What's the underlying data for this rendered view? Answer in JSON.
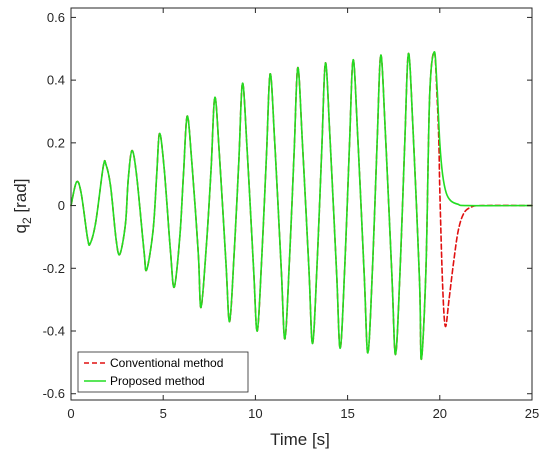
{
  "chart_data": {
    "type": "line",
    "title": "",
    "xlabel": "Time [s]",
    "ylabel_main": "q",
    "ylabel_sub": "2",
    "ylabel_unit": " [rad]",
    "xlim": [
      0,
      25
    ],
    "ylim": [
      -0.62,
      0.63
    ],
    "x_ticks": [
      0,
      5,
      10,
      15,
      20,
      25
    ],
    "x_tick_labels": [
      "0",
      "5",
      "10",
      "15",
      "20",
      "25"
    ],
    "y_ticks": [
      -0.6,
      -0.4,
      -0.2,
      0,
      0.2,
      0.4,
      0.6
    ],
    "y_tick_labels": [
      "-0.6",
      "-0.4",
      "-0.2",
      "0",
      "0.2",
      "0.4",
      "0.6"
    ],
    "grid": false,
    "legend_position": "bottom-left",
    "series": [
      {
        "name": "Conventional method",
        "color": "#e01010",
        "style": "dashed",
        "points": [
          [
            0,
            0
          ],
          [
            0.3,
            0.075
          ],
          [
            0.55,
            0.04
          ],
          [
            0.9,
            -0.105
          ],
          [
            1.05,
            -0.12
          ],
          [
            1.35,
            -0.05
          ],
          [
            1.75,
            0.125
          ],
          [
            1.9,
            0.13
          ],
          [
            2.15,
            0.06
          ],
          [
            2.45,
            -0.11
          ],
          [
            2.65,
            -0.155
          ],
          [
            2.95,
            -0.06
          ],
          [
            3.1,
            0.08
          ],
          [
            3.3,
            0.175
          ],
          [
            3.55,
            0.1
          ],
          [
            3.95,
            -0.14
          ],
          [
            4.1,
            -0.205
          ],
          [
            4.45,
            -0.08
          ],
          [
            4.65,
            0.1
          ],
          [
            4.8,
            0.23
          ],
          [
            5.05,
            0.12
          ],
          [
            5.4,
            -0.15
          ],
          [
            5.6,
            -0.26
          ],
          [
            5.9,
            -0.1
          ],
          [
            6.1,
            0.1
          ],
          [
            6.3,
            0.285
          ],
          [
            6.55,
            0.14
          ],
          [
            6.9,
            -0.15
          ],
          [
            7.05,
            -0.325
          ],
          [
            7.35,
            -0.12
          ],
          [
            7.6,
            0.12
          ],
          [
            7.8,
            0.345
          ],
          [
            8.05,
            0.16
          ],
          [
            8.4,
            -0.18
          ],
          [
            8.6,
            -0.37
          ],
          [
            8.85,
            -0.15
          ],
          [
            9.1,
            0.14
          ],
          [
            9.3,
            0.39
          ],
          [
            9.55,
            0.18
          ],
          [
            9.9,
            -0.2
          ],
          [
            10.1,
            -0.4
          ],
          [
            10.35,
            -0.16
          ],
          [
            10.6,
            0.16
          ],
          [
            10.8,
            0.42
          ],
          [
            11.05,
            0.2
          ],
          [
            11.4,
            -0.2
          ],
          [
            11.6,
            -0.425
          ],
          [
            11.85,
            -0.17
          ],
          [
            12.1,
            0.17
          ],
          [
            12.3,
            0.44
          ],
          [
            12.55,
            0.2
          ],
          [
            12.9,
            -0.2
          ],
          [
            13.1,
            -0.44
          ],
          [
            13.35,
            -0.18
          ],
          [
            13.6,
            0.18
          ],
          [
            13.8,
            0.455
          ],
          [
            14.05,
            0.21
          ],
          [
            14.4,
            -0.21
          ],
          [
            14.6,
            -0.455
          ],
          [
            14.85,
            -0.19
          ],
          [
            15.1,
            0.19
          ],
          [
            15.3,
            0.465
          ],
          [
            15.55,
            0.22
          ],
          [
            15.9,
            -0.22
          ],
          [
            16.1,
            -0.47
          ],
          [
            16.35,
            -0.2
          ],
          [
            16.6,
            0.2
          ],
          [
            16.8,
            0.48
          ],
          [
            17.05,
            0.23
          ],
          [
            17.4,
            -0.22
          ],
          [
            17.6,
            -0.475
          ],
          [
            17.85,
            -0.2
          ],
          [
            18.1,
            0.2
          ],
          [
            18.3,
            0.485
          ],
          [
            18.55,
            0.24
          ],
          [
            18.9,
            -0.24
          ],
          [
            19.0,
            -0.49
          ],
          [
            19.25,
            -0.2
          ],
          [
            19.45,
            0.35
          ],
          [
            19.7,
            0.49
          ],
          [
            19.85,
            0.35
          ],
          [
            19.95,
            0.2
          ],
          [
            20.0,
            0.05
          ],
          [
            20.15,
            -0.25
          ],
          [
            20.3,
            -0.385
          ],
          [
            20.5,
            -0.3
          ],
          [
            20.75,
            -0.18
          ],
          [
            21.0,
            -0.08
          ],
          [
            21.3,
            -0.025
          ],
          [
            21.7,
            -0.005
          ],
          [
            22.3,
            0
          ],
          [
            25,
            0
          ]
        ]
      },
      {
        "name": "Proposed method",
        "color": "#22dd22",
        "style": "solid",
        "points": [
          [
            0,
            0
          ],
          [
            0.3,
            0.075
          ],
          [
            0.55,
            0.04
          ],
          [
            0.9,
            -0.105
          ],
          [
            1.05,
            -0.12
          ],
          [
            1.35,
            -0.05
          ],
          [
            1.75,
            0.125
          ],
          [
            1.9,
            0.13
          ],
          [
            2.15,
            0.06
          ],
          [
            2.45,
            -0.11
          ],
          [
            2.65,
            -0.155
          ],
          [
            2.95,
            -0.06
          ],
          [
            3.1,
            0.08
          ],
          [
            3.3,
            0.175
          ],
          [
            3.55,
            0.1
          ],
          [
            3.95,
            -0.14
          ],
          [
            4.1,
            -0.205
          ],
          [
            4.45,
            -0.08
          ],
          [
            4.65,
            0.1
          ],
          [
            4.8,
            0.23
          ],
          [
            5.05,
            0.12
          ],
          [
            5.4,
            -0.15
          ],
          [
            5.6,
            -0.26
          ],
          [
            5.9,
            -0.1
          ],
          [
            6.1,
            0.1
          ],
          [
            6.3,
            0.285
          ],
          [
            6.55,
            0.14
          ],
          [
            6.9,
            -0.15
          ],
          [
            7.05,
            -0.325
          ],
          [
            7.35,
            -0.12
          ],
          [
            7.6,
            0.12
          ],
          [
            7.8,
            0.345
          ],
          [
            8.05,
            0.16
          ],
          [
            8.4,
            -0.18
          ],
          [
            8.6,
            -0.37
          ],
          [
            8.85,
            -0.15
          ],
          [
            9.1,
            0.14
          ],
          [
            9.3,
            0.39
          ],
          [
            9.55,
            0.18
          ],
          [
            9.9,
            -0.2
          ],
          [
            10.1,
            -0.4
          ],
          [
            10.35,
            -0.16
          ],
          [
            10.6,
            0.16
          ],
          [
            10.8,
            0.42
          ],
          [
            11.05,
            0.2
          ],
          [
            11.4,
            -0.2
          ],
          [
            11.6,
            -0.425
          ],
          [
            11.85,
            -0.17
          ],
          [
            12.1,
            0.17
          ],
          [
            12.3,
            0.44
          ],
          [
            12.55,
            0.2
          ],
          [
            12.9,
            -0.2
          ],
          [
            13.1,
            -0.44
          ],
          [
            13.35,
            -0.18
          ],
          [
            13.6,
            0.18
          ],
          [
            13.8,
            0.455
          ],
          [
            14.05,
            0.21
          ],
          [
            14.4,
            -0.21
          ],
          [
            14.6,
            -0.455
          ],
          [
            14.85,
            -0.19
          ],
          [
            15.1,
            0.19
          ],
          [
            15.3,
            0.465
          ],
          [
            15.55,
            0.22
          ],
          [
            15.9,
            -0.22
          ],
          [
            16.1,
            -0.47
          ],
          [
            16.35,
            -0.2
          ],
          [
            16.6,
            0.2
          ],
          [
            16.8,
            0.48
          ],
          [
            17.05,
            0.23
          ],
          [
            17.4,
            -0.22
          ],
          [
            17.6,
            -0.475
          ],
          [
            17.85,
            -0.2
          ],
          [
            18.1,
            0.2
          ],
          [
            18.3,
            0.485
          ],
          [
            18.55,
            0.24
          ],
          [
            18.9,
            -0.24
          ],
          [
            19.0,
            -0.49
          ],
          [
            19.25,
            -0.2
          ],
          [
            19.45,
            0.35
          ],
          [
            19.7,
            0.49
          ],
          [
            19.85,
            0.38
          ],
          [
            20.0,
            0.2
          ],
          [
            20.15,
            0.1
          ],
          [
            20.35,
            0.04
          ],
          [
            20.6,
            0.015
          ],
          [
            21.0,
            0.004
          ],
          [
            21.5,
            0
          ],
          [
            25,
            0
          ]
        ]
      }
    ]
  }
}
